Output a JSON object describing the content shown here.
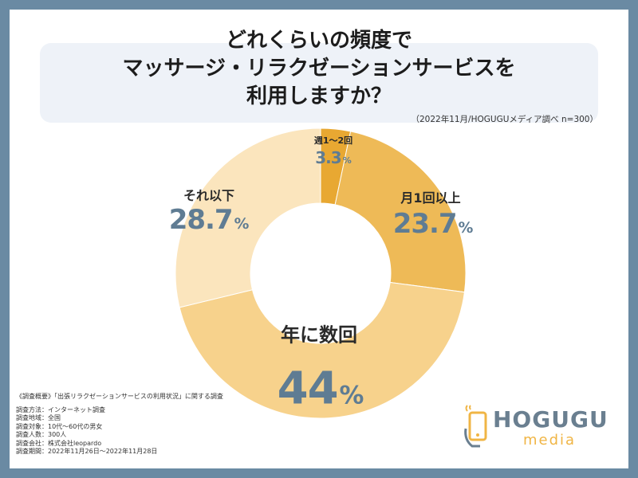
{
  "title": {
    "line1": "どれくらいの頻度で",
    "line2": "マッサージ・リラクゼーションサービスを",
    "line3": "利用しますか？"
  },
  "source": "（2022年11月/HOGUGUメディア調べ n=300）",
  "chart_data": {
    "type": "pie",
    "donut": true,
    "slices": [
      {
        "label": "週1～2回",
        "value": 3.3,
        "value_text": "3.3",
        "color": "#e8a832"
      },
      {
        "label": "月1回以上",
        "value": 23.7,
        "value_text": "23.7",
        "color": "#eeba57"
      },
      {
        "label": "年に数回",
        "value": 44,
        "value_text": "44",
        "color": "#f7d28c"
      },
      {
        "label": "それ以下",
        "value": 28.7,
        "value_text": "28.7",
        "color": "#fbe5bd"
      }
    ],
    "unit": "%"
  },
  "notes": {
    "heading": "《調査概要》「出張リラクゼーションサービスの利用状況」に関する調査",
    "lines": [
      "調査方法：インターネット調査",
      "調査地域：全国",
      "調査対象：10代〜60代の男女",
      "調査人数：300人",
      "調査会社：株式会社leopardo",
      "調査期間：2022年11月26日〜2022年11月28日"
    ]
  },
  "logo": {
    "name": "HOGUGU",
    "sub": "media",
    "icon": "phone-hand-icon"
  }
}
